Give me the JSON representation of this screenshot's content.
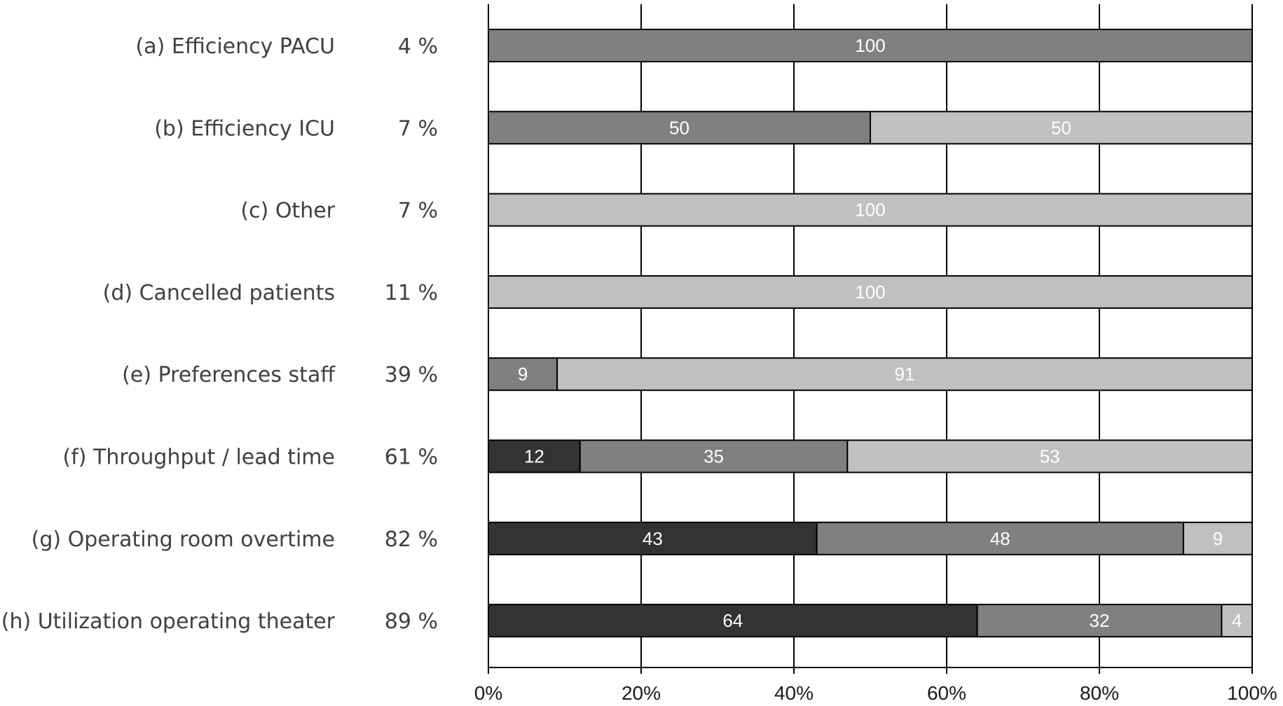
{
  "chart_data": {
    "type": "bar",
    "orientation": "horizontal",
    "stacked": true,
    "title": "",
    "xlabel": "",
    "ylabel": "",
    "xlim": [
      0,
      100
    ],
    "ticks": [
      "0%",
      "20%",
      "40%",
      "60%",
      "80%",
      "100%"
    ],
    "grid": true,
    "legend": "none",
    "colors": [
      "#333333",
      "#808080",
      "#c0c0c0"
    ],
    "categories": [
      "(a) Efficiency PACU",
      "(b) Efficiency ICU",
      "(c) Other",
      "(d) Cancelled patients",
      "(e) Preferences staff",
      "(f) Throughput / lead time",
      "(g) Operating room overtime",
      "(h) Utilization operating theater"
    ],
    "percentages": [
      "4 %",
      "7 %",
      "7 %",
      "11 %",
      "39 %",
      "61 %",
      "82 %",
      "89 %"
    ],
    "series": [
      {
        "values": [
          0,
          0,
          0,
          0,
          0,
          12,
          43,
          64
        ]
      },
      {
        "values": [
          100,
          50,
          0,
          0,
          9,
          35,
          48,
          32
        ]
      },
      {
        "values": [
          0,
          50,
          100,
          100,
          91,
          53,
          9,
          4
        ]
      }
    ]
  }
}
